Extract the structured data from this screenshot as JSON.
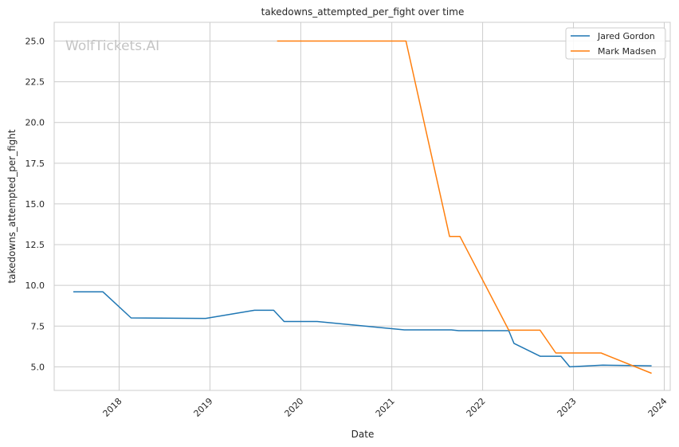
{
  "chart_data": {
    "type": "line",
    "title": "takedowns_attempted_per_fight over time",
    "xlabel": "Date",
    "ylabel": "takedowns_attempted_per_fight",
    "x_ticks": [
      "2018",
      "2019",
      "2020",
      "2021",
      "2022",
      "2023",
      "2024"
    ],
    "y_ticks": [
      "5.0",
      "7.5",
      "10.0",
      "12.5",
      "15.0",
      "17.5",
      "20.0",
      "22.5",
      "25.0"
    ],
    "xlim": [
      "2017-04-15",
      "2024-01-25"
    ],
    "ylim": [
      3.55,
      26.15
    ],
    "grid": true,
    "legend_position": "top-right",
    "watermark": "WolfTickets.AI",
    "series": [
      {
        "name": "Jared Gordon",
        "color": "#1f77b4",
        "points": [
          {
            "date": "2017-07-01",
            "value": 9.6
          },
          {
            "date": "2017-10-28",
            "value": 9.6
          },
          {
            "date": "2018-02-18",
            "value": 8.0
          },
          {
            "date": "2018-12-15",
            "value": 7.97
          },
          {
            "date": "2019-06-29",
            "value": 8.47
          },
          {
            "date": "2019-09-14",
            "value": 8.47
          },
          {
            "date": "2019-10-26",
            "value": 7.78
          },
          {
            "date": "2020-03-07",
            "value": 7.78
          },
          {
            "date": "2021-02-20",
            "value": 7.27
          },
          {
            "date": "2021-08-28",
            "value": 7.27
          },
          {
            "date": "2021-09-27",
            "value": 7.22
          },
          {
            "date": "2022-04-16",
            "value": 7.22
          },
          {
            "date": "2022-05-07",
            "value": 6.44
          },
          {
            "date": "2022-08-20",
            "value": 5.65
          },
          {
            "date": "2022-11-12",
            "value": 5.65
          },
          {
            "date": "2022-12-17",
            "value": 5.0
          },
          {
            "date": "2023-04-29",
            "value": 5.1
          },
          {
            "date": "2023-11-11",
            "value": 5.06
          }
        ]
      },
      {
        "name": "Mark Madsen",
        "color": "#ff7f0e",
        "points": [
          {
            "date": "2019-09-28",
            "value": 25.0
          },
          {
            "date": "2021-02-27",
            "value": 25.0
          },
          {
            "date": "2021-08-21",
            "value": 13.0
          },
          {
            "date": "2021-10-02",
            "value": 13.0
          },
          {
            "date": "2022-04-16",
            "value": 7.25
          },
          {
            "date": "2022-08-20",
            "value": 7.25
          },
          {
            "date": "2022-10-22",
            "value": 5.85
          },
          {
            "date": "2023-04-22",
            "value": 5.85
          },
          {
            "date": "2023-11-11",
            "value": 4.6
          }
        ]
      }
    ]
  }
}
